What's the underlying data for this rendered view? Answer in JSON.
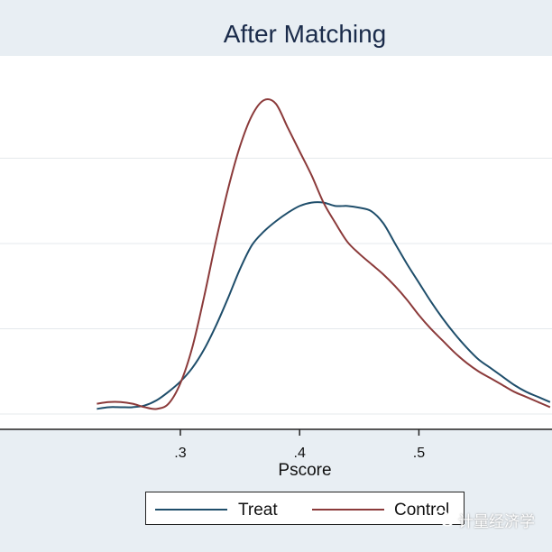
{
  "chart_data": {
    "type": "line",
    "title": "After Matching",
    "xlabel": "Pscore",
    "ylabel": "",
    "xticks": [
      ".3",
      ".4",
      ".5"
    ],
    "xtick_values": [
      0.3,
      0.4,
      0.5
    ],
    "xlim": [
      0.145,
      0.66
    ],
    "ylim": [
      0,
      10.5
    ],
    "grid": "horizontal",
    "legend_position": "bottom",
    "series": [
      {
        "name": "Treat",
        "color": "#1f4e6b",
        "x": [
          0.23,
          0.24,
          0.25,
          0.26,
          0.27,
          0.28,
          0.29,
          0.3,
          0.31,
          0.32,
          0.33,
          0.34,
          0.35,
          0.36,
          0.37,
          0.38,
          0.39,
          0.4,
          0.41,
          0.42,
          0.43,
          0.44,
          0.45,
          0.46,
          0.47,
          0.48,
          0.49,
          0.5,
          0.51,
          0.52,
          0.53,
          0.54,
          0.55,
          0.56,
          0.57,
          0.58,
          0.59,
          0.6,
          0.61
        ],
        "y": [
          0.15,
          0.2,
          0.2,
          0.2,
          0.25,
          0.4,
          0.65,
          0.95,
          1.35,
          1.9,
          2.6,
          3.4,
          4.25,
          4.95,
          5.35,
          5.65,
          5.9,
          6.1,
          6.2,
          6.2,
          6.1,
          6.1,
          6.05,
          5.95,
          5.6,
          5.0,
          4.4,
          3.85,
          3.3,
          2.8,
          2.35,
          1.95,
          1.6,
          1.35,
          1.1,
          0.85,
          0.65,
          0.5,
          0.35
        ]
      },
      {
        "name": "Control",
        "color": "#8b3a3a",
        "x": [
          0.23,
          0.24,
          0.25,
          0.26,
          0.27,
          0.28,
          0.29,
          0.3,
          0.31,
          0.32,
          0.33,
          0.34,
          0.35,
          0.36,
          0.37,
          0.38,
          0.39,
          0.4,
          0.41,
          0.42,
          0.43,
          0.44,
          0.45,
          0.46,
          0.47,
          0.48,
          0.49,
          0.5,
          0.51,
          0.52,
          0.53,
          0.54,
          0.55,
          0.56,
          0.57,
          0.58,
          0.59,
          0.6,
          0.61
        ],
        "y": [
          0.3,
          0.35,
          0.35,
          0.3,
          0.2,
          0.15,
          0.3,
          0.9,
          1.95,
          3.45,
          5.1,
          6.6,
          7.85,
          8.75,
          9.2,
          9.1,
          8.4,
          7.7,
          7.0,
          6.2,
          5.6,
          5.05,
          4.7,
          4.4,
          4.1,
          3.75,
          3.35,
          2.9,
          2.5,
          2.15,
          1.8,
          1.5,
          1.25,
          1.05,
          0.85,
          0.65,
          0.5,
          0.35,
          0.2
        ]
      }
    ]
  }
}
